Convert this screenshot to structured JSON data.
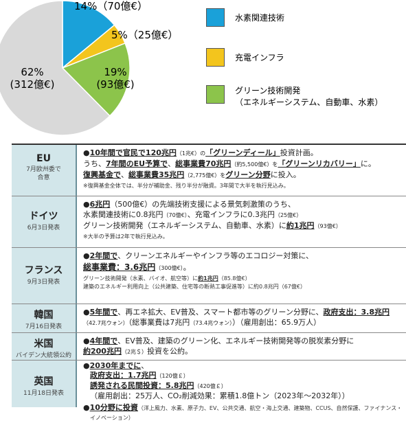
{
  "chart_data": {
    "type": "pie",
    "slices": [
      {
        "label": "水素関連技術",
        "value": 70,
        "percent": "14%",
        "amount": "（70億€）",
        "color": "#1aa1d9"
      },
      {
        "label": "充電インフラ",
        "value": 25,
        "percent": "5%",
        "amount": "（25億€）",
        "color": "#f3c51d"
      },
      {
        "label": "グリーン技術開発",
        "value": 93,
        "percent": "19%",
        "amount": "(93億€)",
        "color": "#8cc44b"
      },
      {
        "label": "",
        "value": 312,
        "percent": "62%",
        "amount": "(312億€)",
        "color": "#d9d9d9"
      }
    ],
    "legend_entries": [
      {
        "line1": "水素関連技術",
        "line2": "",
        "color": "#1aa1d9"
      },
      {
        "line1": "充電インフラ",
        "line2": "",
        "color": "#f3c51d"
      },
      {
        "line1": "グリーン技術開発",
        "line2": "（エネルギーシステム、自動車、水素）",
        "color": "#8cc44b"
      }
    ],
    "start_angle_deg": 0,
    "legend_position": "right"
  },
  "table": {
    "rows": [
      {
        "region": "EU",
        "date": "7月欧州委で\n合意",
        "lines": [
          [
            "●",
            "10年間で官民で120兆円",
            "（1兆€）の",
            "「グリーンディール」",
            "投資計画。"
          ],
          [
            "うち、",
            "7年間のEU予算で",
            "、",
            "総事業費70兆円",
            "（約5,500億€）を",
            "「グリーンリカバリー」",
            "に。"
          ],
          [
            "復興基金で",
            "、",
            "総事業費35兆円",
            "（2,775億€）を",
            "グリーン分野",
            "に投入。"
          ],
          [
            "※復興基金全体では、半分が補助金、残り半分が融資。3年間で大半を執行見込み。"
          ]
        ]
      },
      {
        "region": "ドイツ",
        "date": "6月3日発表",
        "lines": [
          [
            "●",
            "6兆円",
            "（500億€）の先端技術支援による景気刺激策のうち、"
          ],
          [
            "水素関連技術に0.8兆円",
            "（70億€）",
            "、充電インフラに0.3兆円",
            "（25億€）"
          ],
          [
            "グリーン技術開発（エネルギーシステム、自動車、水素）に",
            "約1兆円",
            "（93億€）"
          ],
          [
            "※大半の予算は2年で執行見込み。"
          ]
        ]
      },
      {
        "region": "フランス",
        "date": "9月3日発表",
        "lines": [
          [
            "●",
            "2年間で",
            "、クリーンエネルギーやインフラ等のエコロジー対策に、"
          ],
          [
            "総事業費：3.6兆円",
            "（300億€）",
            "。"
          ],
          [
            "グリーン技術開発（水素、バイオ、航空等）に",
            "約1兆円",
            "（85.8億€）"
          ],
          [
            "建築のエネルギー利用向上（公共建築、住宅等の断熱工事促進等）に約0.8兆円（67億€）"
          ]
        ]
      },
      {
        "region": "韓国",
        "date": "7月16日発表",
        "lines": [
          [
            "●",
            "5年間で",
            "、再エネ拡大、EV普及、スマート都市等のグリーン分野に、",
            "政府支出：3.8兆円"
          ],
          [
            "（42.7兆ウォン）",
            "（総事業費は7兆円",
            "（73.4兆ウォン）",
            "）（雇用創出：65.9万人）"
          ]
        ]
      },
      {
        "region": "米国",
        "date": "バイデン大統領公約",
        "lines": [
          [
            "●",
            "4年間で",
            "、EV普及、建築のグリーン化、エネルギー技術開発等の脱炭素分野に"
          ],
          [
            "約200兆円",
            "（2兆＄）",
            "投資を公約。"
          ]
        ]
      },
      {
        "region": "英国",
        "date": "11月18日発表",
        "lines": [
          [
            "●",
            "2030年までに",
            "、"
          ],
          [
            "政府支出：1.7兆円",
            "（120億￡）"
          ],
          [
            "誘発される民間投資：5.8兆円",
            "（420億￡）"
          ],
          [
            "（雇用創出：25万人、CO₂削減効果：累積1.8億トン（2023年～2032年））"
          ],
          [
            "●",
            "10分野に投資",
            "（洋上風力、水素、原子力、EV、公共交通、航空・海上交通、建築物、CCUS、自然保護、ファイナンス・"
          ],
          [
            "イノベーション）"
          ]
        ]
      }
    ]
  }
}
